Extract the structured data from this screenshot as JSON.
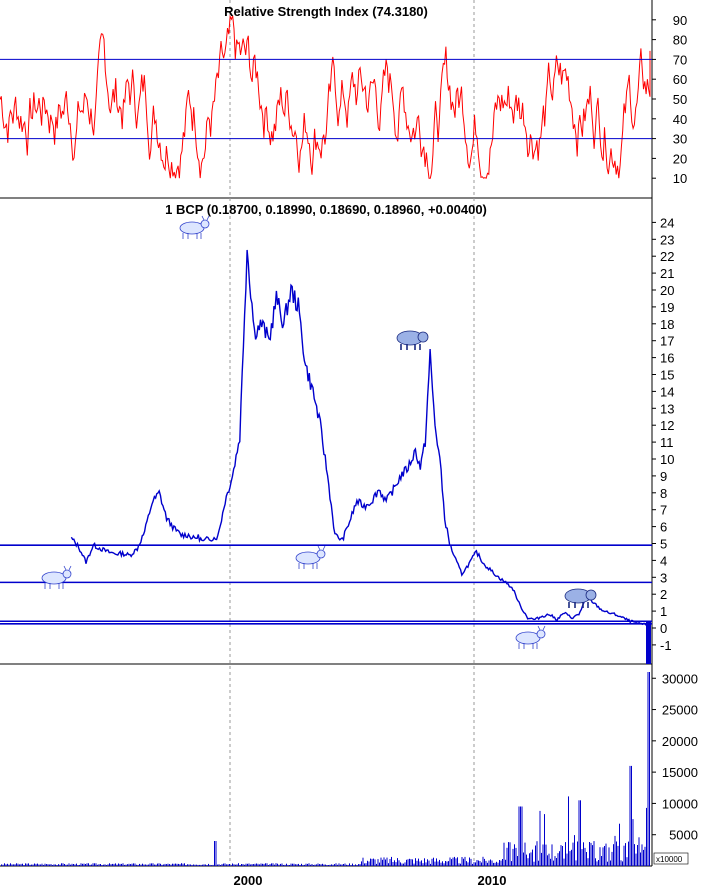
{
  "chart_data": [
    {
      "type": "line",
      "panel": "rsi",
      "title": "Relative Strength Index (74.3180)",
      "ylim": [
        0,
        100
      ],
      "yticks": [
        10,
        20,
        30,
        40,
        50,
        60,
        70,
        80,
        90
      ],
      "reference_lines": [
        30,
        70
      ],
      "color": "#ff0000",
      "last_value": 74.318
    },
    {
      "type": "line",
      "panel": "price",
      "title": "1 BCP (0.18700, 0.18990, 0.18690, 0.18960, +0.00400)",
      "ylim": [
        -2,
        25
      ],
      "yticks": [
        -1,
        0,
        1,
        2,
        3,
        4,
        5,
        6,
        7,
        8,
        9,
        10,
        11,
        12,
        13,
        14,
        15,
        16,
        17,
        18,
        19,
        20,
        21,
        22,
        23,
        24
      ],
      "color": "#0000cc",
      "horizontal_levels": [
        4.9,
        2.7,
        0.4,
        0.25
      ],
      "series": [
        {
          "x": [
            1993.0,
            1993.3,
            1993.6,
            1993.9,
            1994.2,
            1994.5,
            1994.8,
            1995.1,
            1995.4,
            1995.7,
            1996.0,
            1996.3,
            1996.6,
            1996.9,
            1997.2,
            1997.5,
            1997.8,
            1998.0,
            1998.2,
            1998.4,
            1998.6,
            1998.8,
            1999.0,
            1999.3,
            1999.6,
            1999.9,
            2000.2,
            2000.5,
            2000.8,
            2001.1,
            2001.4,
            2001.7,
            2002.0,
            2002.3,
            2002.6,
            2002.9,
            2003.2,
            2003.5,
            2003.8,
            2004.1,
            2004.4,
            2004.7,
            2005.0,
            2005.3,
            2005.6,
            2005.9,
            2006.2,
            2006.5,
            2006.8,
            2007.1,
            2007.3,
            2007.5,
            2007.7,
            2007.9,
            2008.1,
            2008.3,
            2008.5,
            2008.7,
            2009.0,
            2009.3,
            2009.6,
            2009.9,
            2010.2,
            2010.5,
            2010.8,
            2011.1,
            2011.4,
            2011.7,
            2012.0,
            2012.3,
            2012.6,
            2012.9,
            2013.2,
            2013.5,
            2013.8,
            2014.1,
            2014.4,
            2014.7,
            2015.0,
            2015.3,
            2015.6,
            2015.9,
            2016.2,
            2016.5,
            2016.8
          ],
          "values": [
            5.3,
            4.8,
            3.9,
            4.9,
            4.7,
            4.5,
            4.4,
            4.4,
            4.3,
            4.7,
            5.7,
            7.4,
            8.0,
            6.5,
            5.9,
            5.5,
            5.5,
            5.3,
            5.4,
            5.1,
            5.3,
            5.3,
            5.4,
            7.5,
            9.0,
            11.3,
            22.5,
            17.5,
            18.0,
            17.0,
            19.5,
            18.0,
            20.0,
            19.0,
            15.5,
            14.0,
            12.0,
            9.0,
            5.5,
            5.2,
            6.3,
            7.5,
            7.2,
            7.5,
            8.2,
            7.5,
            8.2,
            9.0,
            9.5,
            10.5,
            9.5,
            11.0,
            16.2,
            12.0,
            10.0,
            6.5,
            5.0,
            4.2,
            3.2,
            3.8,
            4.5,
            3.8,
            3.4,
            3.0,
            2.7,
            2.3,
            1.3,
            0.6,
            0.5,
            0.7,
            0.8,
            0.5,
            0.9,
            0.6,
            0.8,
            1.8,
            1.5,
            1.1,
            0.9,
            0.8,
            0.6,
            0.4,
            0.3,
            0.2,
            0.19
          ]
        }
      ],
      "annotations": [
        "bull",
        "bull",
        "bull",
        "bear",
        "bull",
        "bear"
      ]
    },
    {
      "type": "bar",
      "panel": "volume",
      "ylim": [
        0,
        31000
      ],
      "yticks": [
        5000,
        10000,
        15000,
        20000,
        25000,
        30000
      ],
      "unit_label": "x10000",
      "color": "#0000cc"
    }
  ],
  "xaxis": {
    "ticks": [
      "2000",
      "2010"
    ],
    "x_positions": [
      1999.5,
      2009.5
    ]
  }
}
